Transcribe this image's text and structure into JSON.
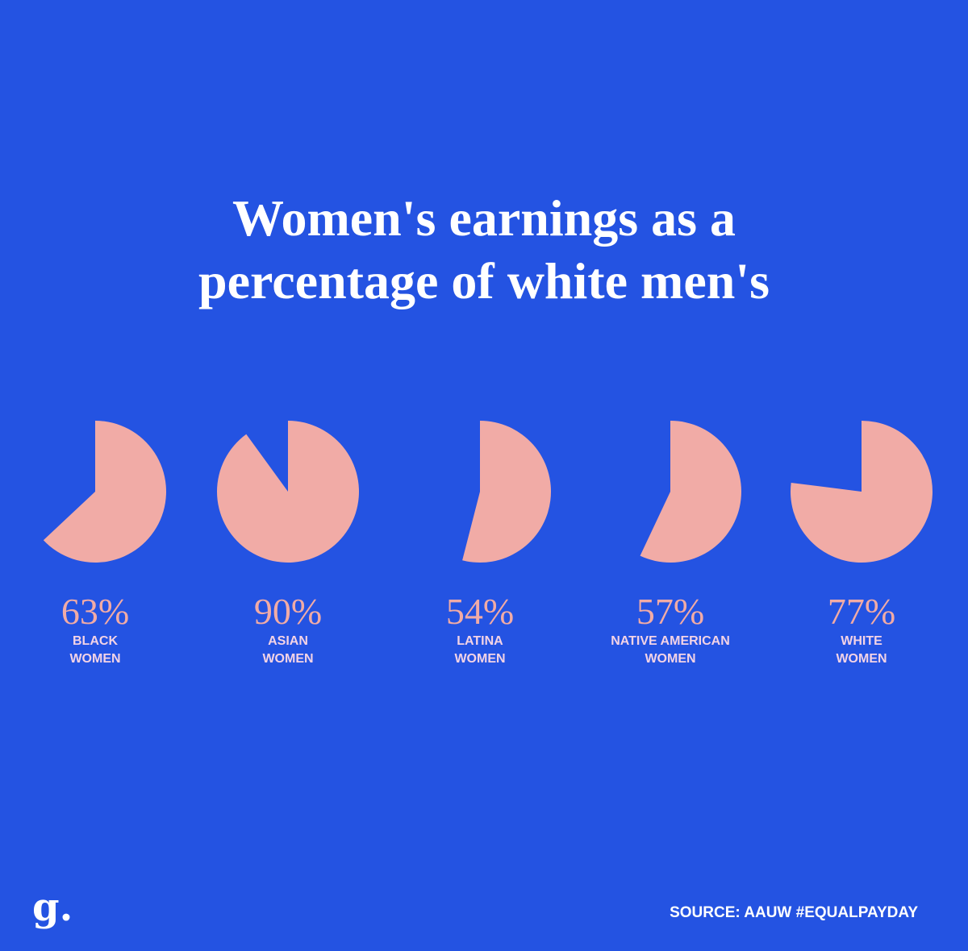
{
  "chart_data": {
    "type": "pie",
    "title": "Women's earnings as a\npercentage of white men's",
    "categories": [
      "BLACK\nWOMEN",
      "ASIAN\nWOMEN",
      "LATINA\nWOMEN",
      "NATIVE AMERICAN\nWOMEN",
      "WHITE\nWOMEN"
    ],
    "values": [
      63,
      90,
      54,
      57,
      77
    ],
    "value_labels": [
      "63%",
      "90%",
      "54%",
      "57%",
      "77%"
    ],
    "color": "#f1aba6",
    "source": "SOURCE: AAUW #EQUALPAYDAY",
    "logo": "g."
  }
}
